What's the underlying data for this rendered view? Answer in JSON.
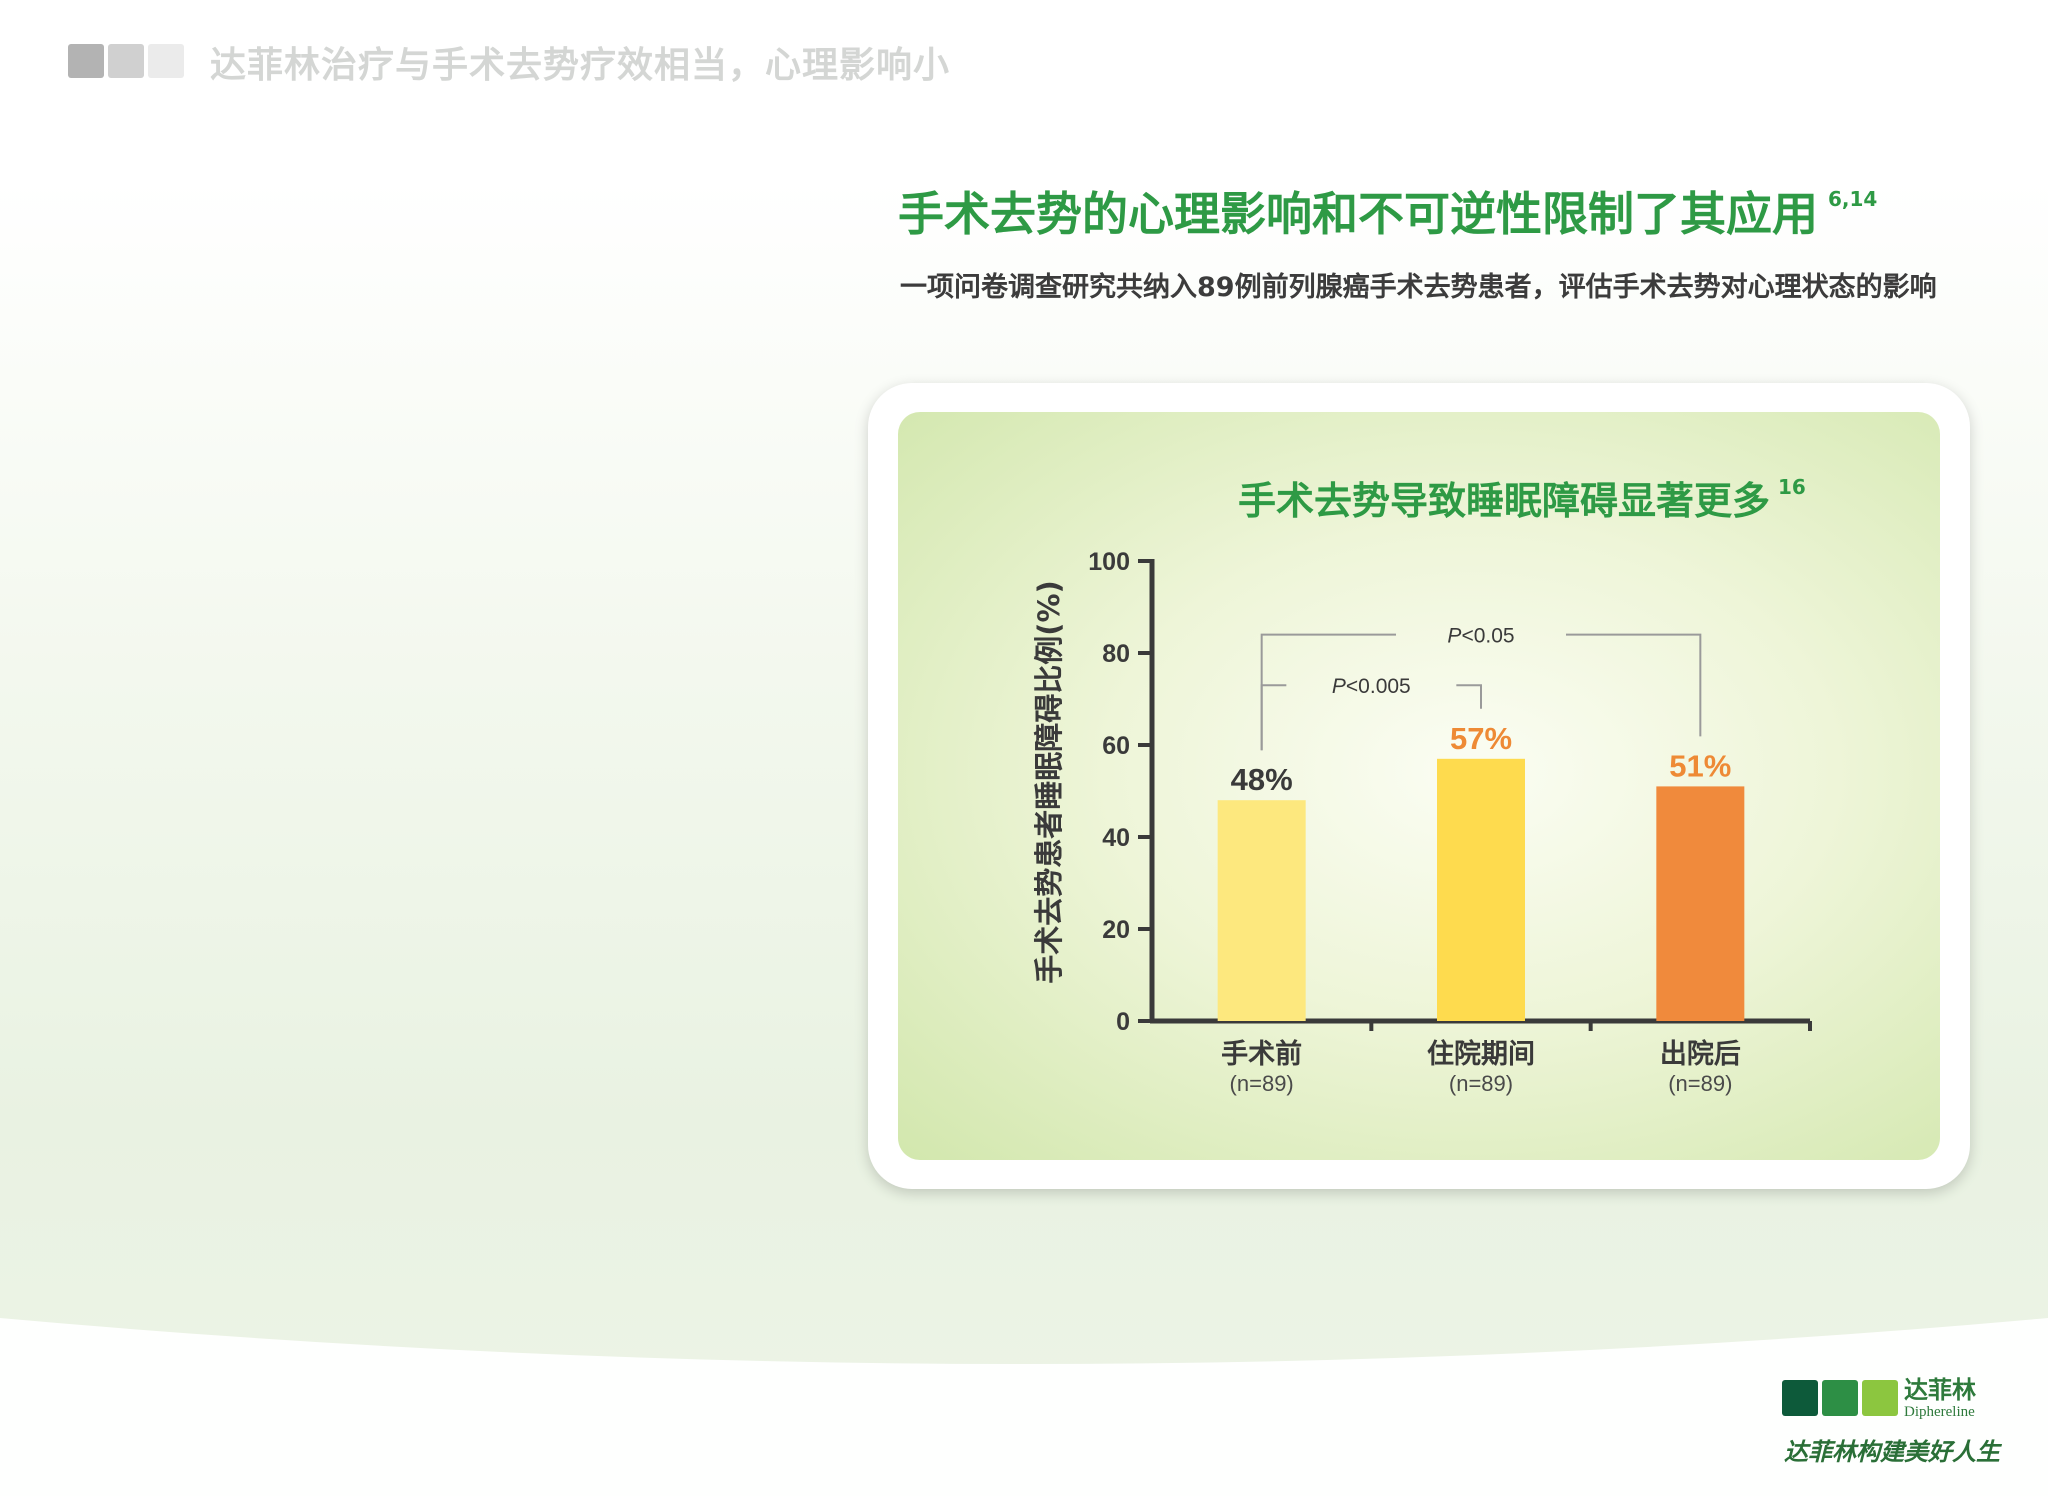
{
  "header": {
    "title": "达菲林治疗与手术去势疗效相当，心理影响小",
    "squares": [
      "#b3b3b3",
      "#d0d0d0",
      "#ebebeb"
    ]
  },
  "headline": {
    "title": "手术去势的心理影响和不可逆性限制了其应用",
    "ref": "6,14"
  },
  "description": "一项问卷调查研究共纳入89例前列腺癌手术去势患者，评估手术去势对心理状态的影响",
  "chart_data": {
    "type": "bar",
    "title": "手术去势导致睡眠障碍显著更多",
    "title_ref": "16",
    "ylabel": "手术去势患者睡眠障碍比例(%)",
    "xlabel": "",
    "ylim": [
      0,
      100
    ],
    "yticks": [
      0,
      20,
      40,
      60,
      80,
      100
    ],
    "grid": false,
    "categories": [
      "手术前",
      "住院期间",
      "出院后"
    ],
    "category_n": [
      "(n=89)",
      "(n=89)",
      "(n=89)"
    ],
    "values": [
      48,
      57,
      51
    ],
    "value_labels": [
      "48%",
      "57%",
      "51%"
    ],
    "bar_colors": [
      "#fde87e",
      "#fedb4e",
      "#f08a3c"
    ],
    "label_colors": [
      "#3a3a3a",
      "#ee8a35",
      "#ee8a35"
    ],
    "comparisons": [
      {
        "from": 0,
        "to": 1,
        "label_prefix": "P",
        "label": "<0.005",
        "y": 73
      },
      {
        "from": 0,
        "to": 2,
        "label_prefix": "P",
        "label": "<0.05",
        "y": 84
      }
    ]
  },
  "logo": {
    "name_cn": "达菲林",
    "name_en": "Diphereline",
    "slogan": "达菲林构建美好人生",
    "colors": [
      "#0d5a3a",
      "#2d8f45",
      "#8cc63f"
    ]
  }
}
